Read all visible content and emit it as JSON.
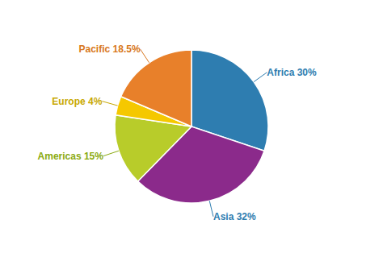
{
  "chart_data": {
    "type": "pie",
    "values": [
      30,
      32,
      15,
      4,
      18.5
    ],
    "colors": [
      "#2e7db0",
      "#8b2a8b",
      "#b8cc2a",
      "#f5c800",
      "#e8802a"
    ],
    "annotations": [
      {
        "text": "Africa 30%",
        "color": "#2e7db0"
      },
      {
        "text": "Asia 32%",
        "color": "#2e7db0"
      },
      {
        "text": "Americas 15%",
        "color": "#8aaa10"
      },
      {
        "text": "Europe 4%",
        "color": "#c8a800"
      },
      {
        "text": "Pacific 18.5%",
        "color": "#d87820"
      }
    ]
  }
}
